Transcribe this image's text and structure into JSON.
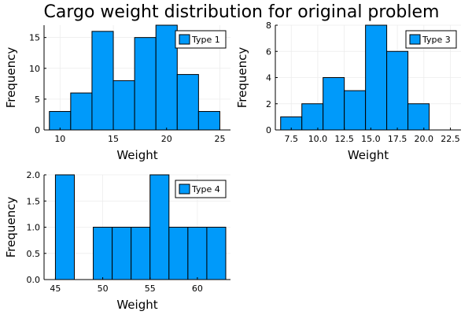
{
  "title": "Cargo weight distribution for original problem",
  "colors": {
    "bar": "#009AFA",
    "bar_edge": "#000000",
    "grid": "#ececec"
  },
  "chart_data": [
    {
      "type": "bar",
      "legend": "Type 1",
      "legend_position": "top-right",
      "xlabel": "Weight",
      "ylabel": "Frequency",
      "grid": true,
      "bin_edges": [
        9,
        11,
        13,
        15,
        17,
        19,
        21,
        23,
        25
      ],
      "values": [
        3,
        6,
        16,
        8,
        15,
        17,
        9,
        3
      ],
      "xlim": [
        8.5,
        26
      ],
      "ylim": [
        0,
        17
      ],
      "xticks": [
        10,
        15,
        20,
        25
      ],
      "yticks": [
        0,
        5,
        10,
        15
      ],
      "xtick_labels": [
        "10",
        "15",
        "20",
        "25"
      ],
      "ytick_labels": [
        "0",
        "5",
        "10",
        "15"
      ]
    },
    {
      "type": "bar",
      "legend": "Type 3",
      "legend_position": "top-right",
      "xlabel": "Weight",
      "ylabel": "Frequency",
      "grid": true,
      "bin_edges": [
        6.5,
        8.5,
        10.5,
        12.5,
        14.5,
        16.5,
        18.5,
        20.5,
        22.5
      ],
      "values": [
        1,
        2,
        4,
        3,
        8,
        6,
        2,
        0
      ],
      "xlim": [
        6,
        23.5
      ],
      "ylim": [
        0,
        8
      ],
      "xticks": [
        7.5,
        10,
        12.5,
        15,
        17.5,
        20,
        22.5
      ],
      "yticks": [
        0,
        2,
        4,
        6,
        8
      ],
      "xtick_labels": [
        "7.5",
        "10.0",
        "12.5",
        "15.0",
        "17.5",
        "20.0",
        "22.5"
      ],
      "ytick_labels": [
        "0",
        "2",
        "4",
        "6",
        "8"
      ]
    },
    {
      "type": "bar",
      "legend": "Type 4",
      "legend_position": "top-right",
      "xlabel": "Weight",
      "ylabel": "Frequency",
      "grid": true,
      "bin_edges": [
        45,
        47,
        49,
        51,
        53,
        55,
        57,
        59,
        61,
        63
      ],
      "values": [
        2,
        0,
        1,
        1,
        1,
        2,
        1,
        1,
        1
      ],
      "xlim": [
        43.8,
        63.5
      ],
      "ylim": [
        0,
        2
      ],
      "xticks": [
        45,
        50,
        55,
        60
      ],
      "yticks": [
        0,
        0.5,
        1,
        1.5,
        2
      ],
      "xtick_labels": [
        "45",
        "50",
        "55",
        "60"
      ],
      "ytick_labels": [
        "0.0",
        "0.5",
        "1.0",
        "1.5",
        "2.0"
      ]
    }
  ]
}
